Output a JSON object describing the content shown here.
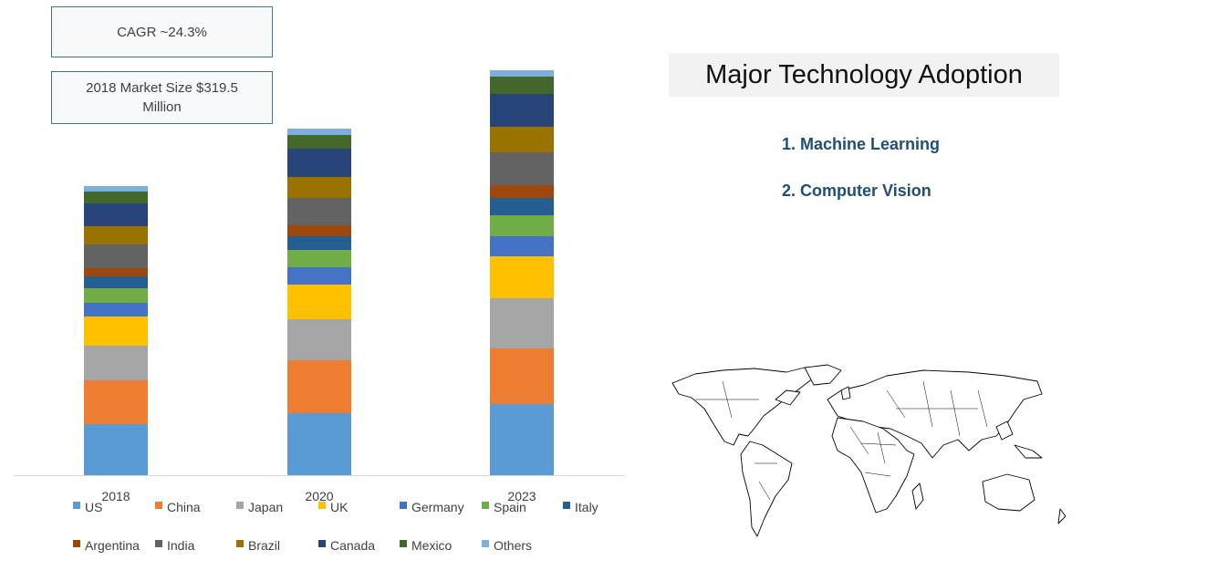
{
  "annotations": {
    "cagr": "CAGR ~24.3%",
    "market_size": "2018 Market Size $319.5 Million"
  },
  "panel": {
    "title": "Major Technology Adoption",
    "items": [
      "1. Machine Learning",
      "2. Computer Vision"
    ],
    "map_icon": "world-map"
  },
  "chart_data": {
    "type": "bar",
    "stacked": true,
    "categories": [
      "2018",
      "2020",
      "2023"
    ],
    "unit": "USD Million (estimated)",
    "grid": false,
    "legend_position": "bottom",
    "series": [
      {
        "name": "US",
        "color": "#5b9bd5",
        "values": [
          56,
          68,
          78
        ]
      },
      {
        "name": "China",
        "color": "#ed7d31",
        "values": [
          48,
          58,
          61
        ]
      },
      {
        "name": "Japan",
        "color": "#a5a5a5",
        "values": [
          38,
          45,
          55
        ]
      },
      {
        "name": "UK",
        "color": "#ffc000",
        "values": [
          32,
          38,
          46
        ]
      },
      {
        "name": "Germany",
        "color": "#4472c4",
        "values": [
          15,
          19,
          22
        ]
      },
      {
        "name": "Spain",
        "color": "#70ad47",
        "values": [
          16,
          19,
          23
        ]
      },
      {
        "name": "Italy",
        "color": "#255e91",
        "values": [
          13,
          15,
          19
        ]
      },
      {
        "name": "Argentina",
        "color": "#9e480e",
        "values": [
          9,
          12,
          14
        ]
      },
      {
        "name": "India",
        "color": "#636363",
        "values": [
          26,
          30,
          36
        ]
      },
      {
        "name": "Brazil",
        "color": "#997300",
        "values": [
          20,
          23,
          28
        ]
      },
      {
        "name": "Canada",
        "color": "#264478",
        "values": [
          25,
          31,
          36
        ]
      },
      {
        "name": "Mexico",
        "color": "#43682b",
        "values": [
          13,
          15,
          19
        ]
      },
      {
        "name": "Others",
        "color": "#7cafdd",
        "values": [
          6,
          7,
          7
        ]
      }
    ]
  }
}
